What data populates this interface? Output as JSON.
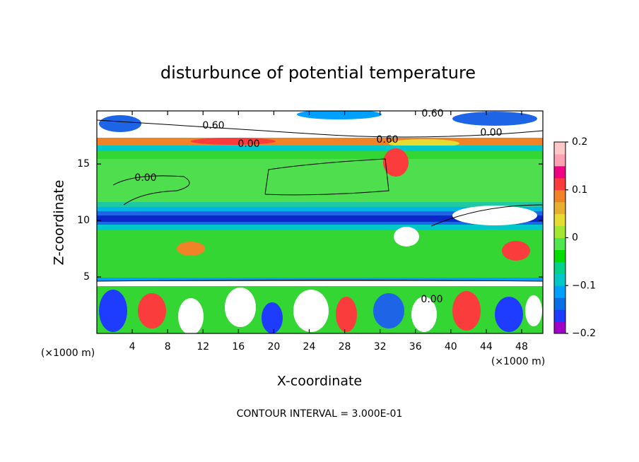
{
  "chart_data": {
    "type": "contour",
    "title": "disturbunce of potential temperature",
    "xlabel": "X-coordinate",
    "ylabel": "Z-coordinate",
    "x_unit_label": "(×1000 m)",
    "footer": "CONTOUR INTERVAL = 3.000E-01",
    "xlim": [
      0,
      50.4
    ],
    "xticks": [
      4,
      8,
      12,
      16,
      20,
      24,
      28,
      32,
      36,
      40,
      44,
      48
    ],
    "ylim": [
      0,
      19.7
    ],
    "yticks": [
      5,
      10,
      15
    ],
    "contour_labels": [
      "0.60",
      "0.60",
      "0.00",
      "0.60",
      "0.00",
      "0.00",
      "0.00"
    ],
    "colorbar": {
      "lim": [
        -0.2,
        0.2
      ],
      "ticks": [
        {
          "value": 0.2,
          "label": "0.2"
        },
        {
          "value": 0.1,
          "label": "0.1"
        },
        0,
        {
          "value": -0.1,
          "label": "−0.1"
        },
        {
          "value": -0.2,
          "label": "−0.2"
        }
      ],
      "colors": [
        "#a000c8",
        "#1e3cff",
        "#0a6ee6",
        "#00a0ff",
        "#00c8c8",
        "#00d28c",
        "#00dc00",
        "#50e650",
        "#a0e632",
        "#e6dc32",
        "#e6af2d",
        "#f08228",
        "#fa3c3c",
        "#f00082",
        "#ffa0b4",
        "#ffc8c8"
      ]
    }
  }
}
